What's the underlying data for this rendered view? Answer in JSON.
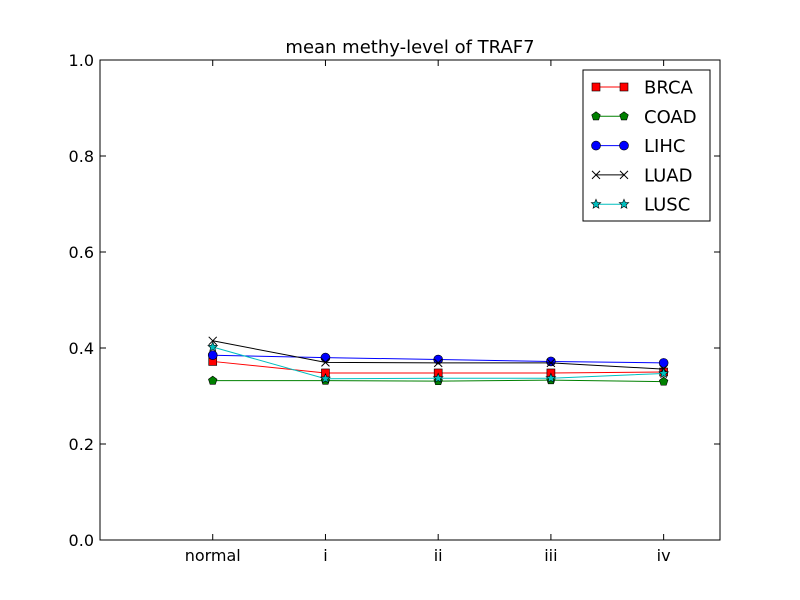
{
  "chart_data": {
    "type": "line",
    "title": "mean methy-level of TRAF7",
    "xlabel": "",
    "ylabel": "",
    "categories": [
      "normal",
      "i",
      "ii",
      "iii",
      "iv"
    ],
    "x_range": [
      -1,
      4.5
    ],
    "ylim": [
      0.0,
      1.0
    ],
    "yticks": [
      0.0,
      0.2,
      0.4,
      0.6,
      0.8,
      1.0
    ],
    "ytick_labels": [
      "0.0",
      "0.2",
      "0.4",
      "0.6",
      "0.8",
      "1.0"
    ],
    "grid": false,
    "legend_position": "top-right",
    "series": [
      {
        "name": "BRCA",
        "color": "#ff0000",
        "marker": "square",
        "values": [
          0.372,
          0.348,
          0.348,
          0.348,
          0.35
        ]
      },
      {
        "name": "COAD",
        "color": "#008000",
        "marker": "pentagon",
        "values": [
          0.332,
          0.332,
          0.331,
          0.333,
          0.33
        ]
      },
      {
        "name": "LIHC",
        "color": "#0000ff",
        "marker": "circle",
        "values": [
          0.385,
          0.38,
          0.376,
          0.372,
          0.369
        ]
      },
      {
        "name": "LUAD",
        "color": "#000000",
        "marker": "x",
        "values": [
          0.415,
          0.37,
          0.369,
          0.369,
          0.356
        ]
      },
      {
        "name": "LUSC",
        "color": "#00bfbf",
        "marker": "star",
        "values": [
          0.402,
          0.336,
          0.337,
          0.337,
          0.347
        ]
      }
    ]
  }
}
